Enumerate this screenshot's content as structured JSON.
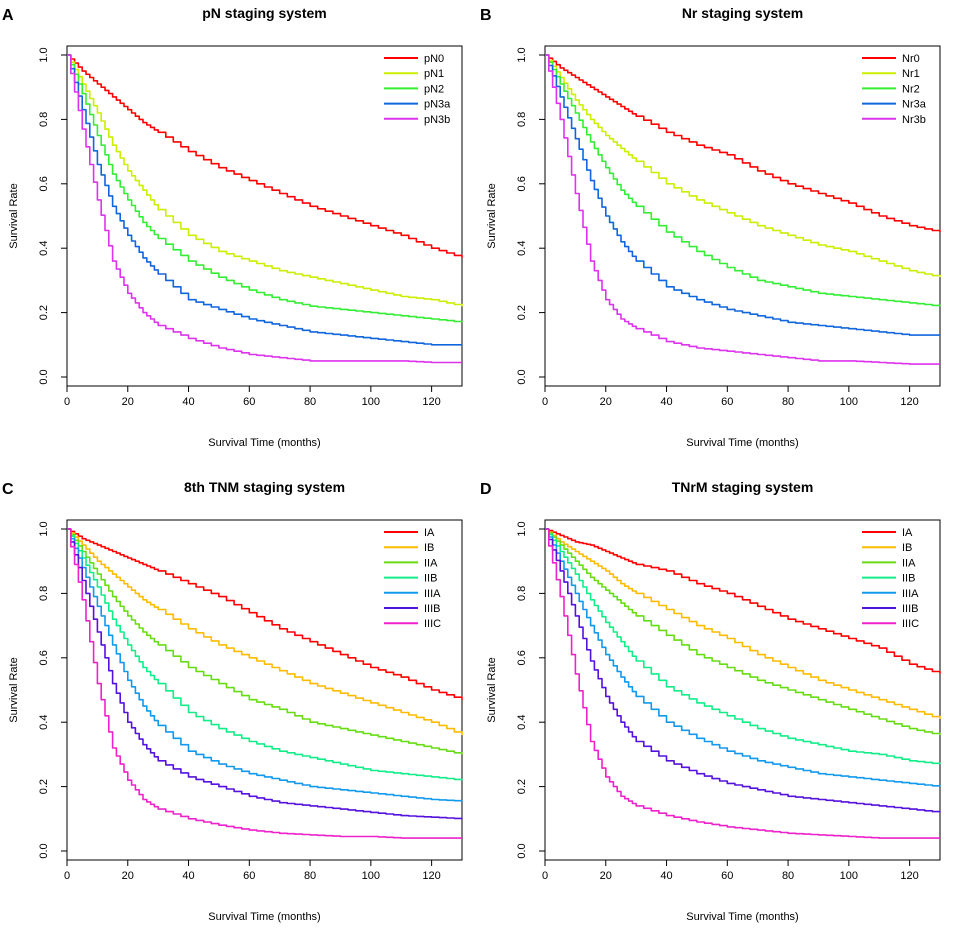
{
  "chart_data": [
    {
      "type": "line",
      "panel_letter": "A",
      "title": "pN staging system",
      "xlabel": "Survival Time (months)",
      "ylabel": "Survival Rate",
      "xlim": [
        0,
        130
      ],
      "ylim": [
        0,
        1
      ],
      "xticks": [
        "0",
        "20",
        "40",
        "60",
        "80",
        "100",
        "120"
      ],
      "yticks": [
        "0.0",
        "0.2",
        "0.4",
        "0.6",
        "0.8",
        "1.0"
      ],
      "legend_position": "top-right",
      "x": [
        0,
        5,
        10,
        15,
        20,
        25,
        30,
        40,
        50,
        60,
        70,
        80,
        90,
        100,
        110,
        120,
        130
      ],
      "series": [
        {
          "name": "pN0",
          "color": "#ff0000",
          "values": [
            1.0,
            0.95,
            0.91,
            0.87,
            0.83,
            0.79,
            0.76,
            0.7,
            0.65,
            0.61,
            0.57,
            0.53,
            0.5,
            0.47,
            0.44,
            0.4,
            0.37
          ]
        },
        {
          "name": "pN1",
          "color": "#ccee00",
          "values": [
            1.0,
            0.91,
            0.82,
            0.72,
            0.64,
            0.58,
            0.52,
            0.44,
            0.39,
            0.36,
            0.33,
            0.31,
            0.29,
            0.27,
            0.25,
            0.24,
            0.22
          ]
        },
        {
          "name": "pN2",
          "color": "#33ee33",
          "values": [
            1.0,
            0.88,
            0.75,
            0.63,
            0.55,
            0.48,
            0.43,
            0.36,
            0.31,
            0.27,
            0.24,
            0.22,
            0.21,
            0.2,
            0.19,
            0.18,
            0.17
          ]
        },
        {
          "name": "pN3a",
          "color": "#1166dd",
          "values": [
            1.0,
            0.83,
            0.66,
            0.53,
            0.44,
            0.37,
            0.32,
            0.24,
            0.21,
            0.18,
            0.16,
            0.14,
            0.13,
            0.12,
            0.11,
            0.1,
            0.1
          ]
        },
        {
          "name": "pN3b",
          "color": "#dd33ee",
          "values": [
            1.0,
            0.77,
            0.55,
            0.36,
            0.26,
            0.2,
            0.16,
            0.12,
            0.09,
            0.07,
            0.06,
            0.05,
            0.05,
            0.05,
            0.05,
            0.045,
            0.045
          ]
        }
      ]
    },
    {
      "type": "line",
      "panel_letter": "B",
      "title": "Nr staging system",
      "xlabel": "Survival Time (months)",
      "ylabel": "Survival Rate",
      "xlim": [
        0,
        130
      ],
      "ylim": [
        0,
        1
      ],
      "xticks": [
        "0",
        "20",
        "40",
        "60",
        "80",
        "100",
        "120"
      ],
      "yticks": [
        "0.0",
        "0.2",
        "0.4",
        "0.6",
        "0.8",
        "1.0"
      ],
      "legend_position": "top-right",
      "x": [
        0,
        5,
        10,
        15,
        20,
        25,
        30,
        40,
        50,
        60,
        70,
        80,
        90,
        100,
        110,
        120,
        130
      ],
      "series": [
        {
          "name": "Nr0",
          "color": "#ff0000",
          "values": [
            1.0,
            0.96,
            0.93,
            0.9,
            0.87,
            0.84,
            0.81,
            0.76,
            0.72,
            0.69,
            0.64,
            0.6,
            0.57,
            0.54,
            0.5,
            0.47,
            0.45
          ]
        },
        {
          "name": "Nr1",
          "color": "#ccee00",
          "values": [
            1.0,
            0.93,
            0.86,
            0.8,
            0.75,
            0.71,
            0.67,
            0.6,
            0.55,
            0.51,
            0.47,
            0.44,
            0.41,
            0.39,
            0.36,
            0.33,
            0.31
          ]
        },
        {
          "name": "Nr2",
          "color": "#33ee33",
          "values": [
            1.0,
            0.91,
            0.82,
            0.73,
            0.65,
            0.58,
            0.53,
            0.45,
            0.39,
            0.34,
            0.3,
            0.28,
            0.26,
            0.25,
            0.24,
            0.23,
            0.22
          ]
        },
        {
          "name": "Nr3a",
          "color": "#1166dd",
          "values": [
            1.0,
            0.87,
            0.74,
            0.61,
            0.5,
            0.42,
            0.36,
            0.28,
            0.24,
            0.21,
            0.19,
            0.17,
            0.16,
            0.15,
            0.14,
            0.13,
            0.13
          ]
        },
        {
          "name": "Nr3b",
          "color": "#dd33ee",
          "values": [
            1.0,
            0.8,
            0.57,
            0.36,
            0.24,
            0.18,
            0.15,
            0.11,
            0.09,
            0.08,
            0.07,
            0.06,
            0.05,
            0.05,
            0.045,
            0.04,
            0.04
          ]
        }
      ]
    },
    {
      "type": "line",
      "panel_letter": "C",
      "title": "8th TNM staging system",
      "xlabel": "Survival Time (months)",
      "ylabel": "Survival Rate",
      "xlim": [
        0,
        130
      ],
      "ylim": [
        0,
        1
      ],
      "xticks": [
        "0",
        "20",
        "40",
        "60",
        "80",
        "100",
        "120"
      ],
      "yticks": [
        "0.0",
        "0.2",
        "0.4",
        "0.6",
        "0.8",
        "1.0"
      ],
      "legend_position": "top-right",
      "x": [
        0,
        5,
        10,
        15,
        20,
        25,
        30,
        40,
        50,
        60,
        70,
        80,
        90,
        100,
        110,
        120,
        130
      ],
      "series": [
        {
          "name": "IA",
          "color": "#ff0000",
          "values": [
            1.0,
            0.97,
            0.95,
            0.93,
            0.91,
            0.89,
            0.87,
            0.83,
            0.79,
            0.74,
            0.69,
            0.65,
            0.61,
            0.57,
            0.54,
            0.5,
            0.47
          ]
        },
        {
          "name": "IB",
          "color": "#ffbb00",
          "values": [
            1.0,
            0.95,
            0.9,
            0.86,
            0.82,
            0.78,
            0.75,
            0.69,
            0.64,
            0.6,
            0.56,
            0.52,
            0.49,
            0.46,
            0.43,
            0.4,
            0.36
          ]
        },
        {
          "name": "IIA",
          "color": "#66dd11",
          "values": [
            1.0,
            0.93,
            0.86,
            0.79,
            0.73,
            0.68,
            0.64,
            0.57,
            0.52,
            0.47,
            0.44,
            0.4,
            0.38,
            0.36,
            0.34,
            0.32,
            0.3
          ]
        },
        {
          "name": "IIB",
          "color": "#11ee88",
          "values": [
            1.0,
            0.91,
            0.82,
            0.72,
            0.64,
            0.57,
            0.52,
            0.43,
            0.38,
            0.34,
            0.31,
            0.29,
            0.27,
            0.25,
            0.24,
            0.23,
            0.22
          ]
        },
        {
          "name": "IIIA",
          "color": "#1199ee",
          "values": [
            1.0,
            0.88,
            0.76,
            0.64,
            0.53,
            0.45,
            0.39,
            0.31,
            0.27,
            0.24,
            0.22,
            0.2,
            0.19,
            0.18,
            0.17,
            0.16,
            0.155
          ]
        },
        {
          "name": "IIIB",
          "color": "#5511dd",
          "values": [
            1.0,
            0.84,
            0.68,
            0.52,
            0.4,
            0.33,
            0.28,
            0.23,
            0.2,
            0.17,
            0.15,
            0.14,
            0.13,
            0.12,
            0.11,
            0.105,
            0.1
          ]
        },
        {
          "name": "IIIC",
          "color": "#ee22cc",
          "values": [
            1.0,
            0.78,
            0.52,
            0.32,
            0.22,
            0.16,
            0.13,
            0.1,
            0.08,
            0.065,
            0.055,
            0.05,
            0.045,
            0.045,
            0.04,
            0.04,
            0.04
          ]
        }
      ]
    },
    {
      "type": "line",
      "panel_letter": "D",
      "title": "TNrM staging system",
      "xlabel": "Survival Time (months)",
      "ylabel": "Survival Rate",
      "xlim": [
        0,
        130
      ],
      "ylim": [
        0,
        1
      ],
      "xticks": [
        "0",
        "20",
        "40",
        "60",
        "80",
        "100",
        "120"
      ],
      "yticks": [
        "0.0",
        "0.2",
        "0.4",
        "0.6",
        "0.8",
        "1.0"
      ],
      "legend_position": "top-right",
      "x": [
        0,
        5,
        10,
        15,
        20,
        25,
        30,
        40,
        50,
        60,
        70,
        80,
        90,
        100,
        110,
        120,
        130
      ],
      "series": [
        {
          "name": "IA",
          "color": "#ff0000",
          "values": [
            1.0,
            0.98,
            0.96,
            0.95,
            0.93,
            0.91,
            0.89,
            0.87,
            0.83,
            0.8,
            0.76,
            0.72,
            0.69,
            0.66,
            0.63,
            0.58,
            0.55
          ]
        },
        {
          "name": "IB",
          "color": "#ffbb00",
          "values": [
            1.0,
            0.96,
            0.93,
            0.9,
            0.87,
            0.83,
            0.8,
            0.75,
            0.7,
            0.66,
            0.61,
            0.57,
            0.53,
            0.5,
            0.47,
            0.44,
            0.41
          ]
        },
        {
          "name": "IIA",
          "color": "#66dd11",
          "values": [
            1.0,
            0.95,
            0.9,
            0.85,
            0.81,
            0.77,
            0.73,
            0.67,
            0.61,
            0.57,
            0.53,
            0.5,
            0.47,
            0.44,
            0.41,
            0.38,
            0.36
          ]
        },
        {
          "name": "IIB",
          "color": "#11ee88",
          "values": [
            1.0,
            0.93,
            0.86,
            0.78,
            0.71,
            0.65,
            0.59,
            0.51,
            0.46,
            0.42,
            0.38,
            0.35,
            0.33,
            0.31,
            0.3,
            0.28,
            0.27
          ]
        },
        {
          "name": "IIIA",
          "color": "#1199ee",
          "values": [
            1.0,
            0.9,
            0.8,
            0.7,
            0.61,
            0.54,
            0.48,
            0.4,
            0.35,
            0.31,
            0.28,
            0.26,
            0.24,
            0.23,
            0.22,
            0.21,
            0.2
          ]
        },
        {
          "name": "IIIB",
          "color": "#5511dd",
          "values": [
            1.0,
            0.87,
            0.73,
            0.59,
            0.48,
            0.4,
            0.34,
            0.28,
            0.24,
            0.21,
            0.19,
            0.17,
            0.16,
            0.15,
            0.14,
            0.13,
            0.12
          ]
        },
        {
          "name": "IIIC",
          "color": "#ee22cc",
          "values": [
            1.0,
            0.79,
            0.55,
            0.34,
            0.23,
            0.17,
            0.14,
            0.11,
            0.09,
            0.075,
            0.065,
            0.055,
            0.05,
            0.045,
            0.04,
            0.04,
            0.04
          ]
        }
      ]
    }
  ]
}
